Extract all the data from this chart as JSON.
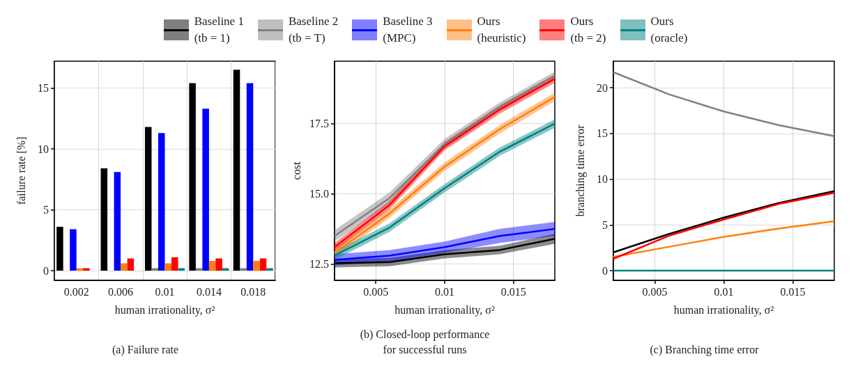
{
  "chart_data": [
    {
      "type": "bar",
      "title": "(a) Failure rate",
      "xlabel": "human irrationality, σ²",
      "ylabel": "failure rate [%]",
      "legend": "top",
      "grid": true,
      "categories": [
        "0.002",
        "0.006",
        "0.01",
        "0.014",
        "0.018"
      ],
      "ylim": [
        -0.8,
        17.2
      ],
      "yticks": [
        0,
        5,
        10,
        15
      ],
      "series": [
        {
          "name": "Baseline 1\n(tb = 1)",
          "color": "#000000",
          "values": [
            3.6,
            8.4,
            11.8,
            15.4,
            16.5
          ]
        },
        {
          "name": "Baseline 2\n(tb = T)",
          "color": "#808080",
          "values": [
            0,
            0,
            0.2,
            0.2,
            0.2
          ]
        },
        {
          "name": "Baseline 3\n(MPC)",
          "color": "#0000ff",
          "values": [
            3.4,
            8.1,
            11.3,
            13.3,
            15.4
          ]
        },
        {
          "name": "Ours\n(heuristic)",
          "color": "#ff7f0e",
          "values": [
            0.2,
            0.6,
            0.6,
            0.8,
            0.8
          ]
        },
        {
          "name": "Ours\n(tb = 2)",
          "color": "#ff0000",
          "values": [
            0.2,
            1.0,
            1.1,
            1.0,
            1.0
          ]
        },
        {
          "name": "Ours\n(oracle)",
          "color": "#008080",
          "values": [
            0,
            0,
            0.2,
            0.2,
            0.2
          ]
        }
      ]
    },
    {
      "type": "line",
      "title": "(b) Closed-loop performance\nfor successful runs",
      "xlabel": "human irrationality, σ²",
      "ylabel": "cost",
      "grid": true,
      "x": [
        0.002,
        0.006,
        0.01,
        0.014,
        0.018
      ],
      "xlim": [
        0.002,
        0.018
      ],
      "xticks": [
        0.005,
        0.01,
        0.015
      ],
      "ylim": [
        11.92,
        19.72
      ],
      "yticks": [
        12.5,
        {
          "value": 15,
          "label": "15.0"
        },
        17.5
      ],
      "series": [
        {
          "color": "#000000",
          "values": [
            12.53,
            12.57,
            12.85,
            13.0,
            13.4
          ],
          "lower": [
            12.38,
            12.42,
            12.7,
            12.85,
            13.22
          ],
          "upper": [
            12.68,
            12.72,
            13.0,
            13.15,
            13.58
          ]
        },
        {
          "color": "#808080",
          "values": [
            13.5,
            14.85,
            16.77,
            18.1,
            19.2
          ],
          "lower": [
            13.3,
            14.65,
            16.6,
            17.95,
            19.05
          ],
          "upper": [
            13.7,
            15.05,
            16.95,
            18.25,
            19.35
          ]
        },
        {
          "color": "#0000ff",
          "values": [
            12.65,
            12.8,
            13.1,
            13.5,
            13.75
          ],
          "lower": [
            12.45,
            12.6,
            12.9,
            13.25,
            13.5
          ],
          "upper": [
            12.85,
            13.0,
            13.3,
            13.75,
            14.0
          ]
        },
        {
          "color": "#ff7f0e",
          "values": [
            12.9,
            14.3,
            15.97,
            17.3,
            18.45
          ],
          "lower": [
            12.75,
            14.15,
            15.82,
            17.15,
            18.3
          ],
          "upper": [
            13.05,
            14.45,
            16.12,
            17.45,
            18.6
          ]
        },
        {
          "color": "#ff0000",
          "values": [
            13.1,
            14.6,
            16.7,
            18.0,
            19.1
          ],
          "lower": [
            12.95,
            14.45,
            16.55,
            17.85,
            18.95
          ],
          "upper": [
            13.25,
            14.75,
            16.85,
            18.15,
            19.25
          ]
        },
        {
          "color": "#008080",
          "values": [
            12.8,
            13.8,
            15.2,
            16.5,
            17.5
          ],
          "lower": [
            12.65,
            13.65,
            15.05,
            16.35,
            17.35
          ],
          "upper": [
            12.95,
            13.95,
            15.35,
            16.65,
            17.65
          ]
        }
      ]
    },
    {
      "type": "line",
      "title": "(c) Branching time error",
      "xlabel": "human irrationality, σ²",
      "ylabel": "branching time error",
      "grid": true,
      "x": [
        0.002,
        0.006,
        0.01,
        0.014,
        0.018
      ],
      "xlim": [
        0.002,
        0.018
      ],
      "xticks": [
        0.005,
        0.01,
        0.015
      ],
      "ylim": [
        -1.06,
        22.9
      ],
      "yticks": [
        0,
        5,
        10,
        15,
        20
      ],
      "series": [
        {
          "color": "#000000",
          "values": [
            2.0,
            4.0,
            5.8,
            7.4,
            8.7
          ]
        },
        {
          "color": "#808080",
          "values": [
            21.7,
            19.3,
            17.4,
            15.9,
            14.7
          ]
        },
        {
          "color": "#ff7f0e",
          "values": [
            1.5,
            2.6,
            3.7,
            4.6,
            5.4
          ]
        },
        {
          "color": "#ff0000",
          "values": [
            1.3,
            3.8,
            5.6,
            7.3,
            8.5
          ]
        },
        {
          "color": "#008080",
          "values": [
            0,
            0,
            0,
            0,
            0
          ]
        }
      ]
    }
  ]
}
